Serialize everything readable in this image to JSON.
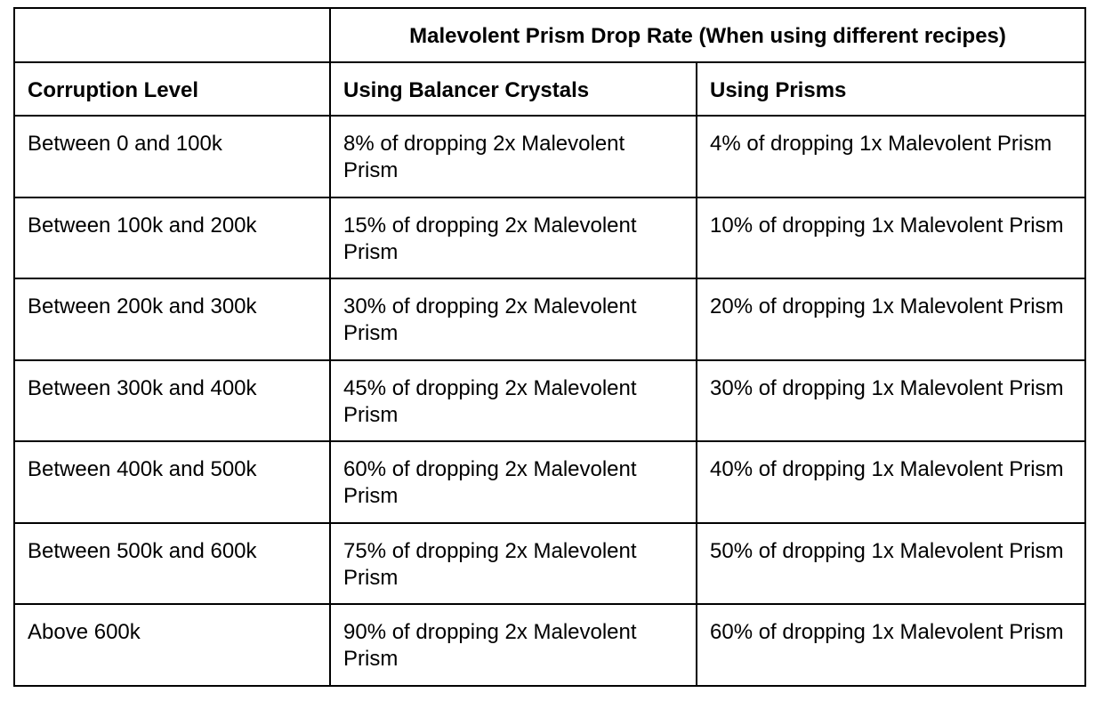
{
  "table": {
    "title": "Malevolent Prism Drop Rate (When using different recipes)",
    "headers": [
      "Corruption Level",
      "Using Balancer Crystals",
      "Using Prisms"
    ],
    "rows": [
      [
        "Between 0 and 100k",
        "8% of dropping 2x Malevolent Prism",
        "4% of dropping 1x Malevolent Prism"
      ],
      [
        "Between 100k and 200k",
        "15% of dropping 2x Malevolent Prism",
        "10% of dropping 1x Malevolent Prism"
      ],
      [
        "Between 200k and 300k",
        "30% of dropping 2x Malevolent Prism",
        "20% of dropping 1x Malevolent Prism"
      ],
      [
        "Between 300k and 400k",
        "45% of dropping 2x Malevolent Prism",
        "30% of dropping 1x Malevolent Prism"
      ],
      [
        "Between 400k and 500k",
        "60% of dropping 2x Malevolent Prism",
        "40% of dropping 1x Malevolent Prism"
      ],
      [
        "Between 500k and 600k",
        "75% of dropping 2x Malevolent Prism",
        "50% of dropping 1x Malevolent Prism"
      ],
      [
        "Above 600k",
        "90% of dropping 2x Malevolent Prism",
        "60% of dropping 1x Malevolent Prism"
      ]
    ]
  }
}
